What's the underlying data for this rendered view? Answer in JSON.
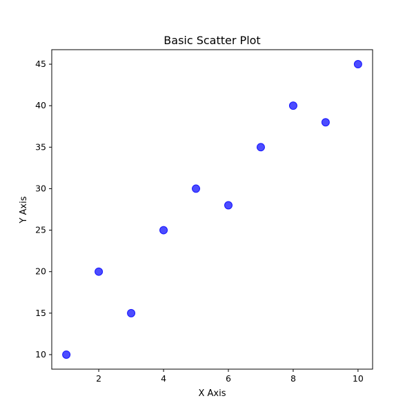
{
  "chart_data": {
    "type": "scatter",
    "title": "Basic Scatter Plot",
    "xlabel": "X Axis",
    "ylabel": "Y Axis",
    "x": [
      1,
      2,
      3,
      4,
      5,
      6,
      7,
      8,
      9,
      10
    ],
    "y": [
      10,
      20,
      15,
      25,
      30,
      28,
      35,
      40,
      38,
      45
    ],
    "xlim": [
      0.55,
      10.45
    ],
    "ylim": [
      8.25,
      46.75
    ],
    "xticks": [
      2,
      4,
      6,
      8,
      10
    ],
    "yticks": [
      10,
      15,
      20,
      25,
      30,
      35,
      40,
      45
    ],
    "xtick_labels": [
      "2",
      "4",
      "6",
      "8",
      "10"
    ],
    "ytick_labels": [
      "10",
      "15",
      "20",
      "25",
      "30",
      "35",
      "40",
      "45"
    ],
    "grid": false,
    "marker_color": "#0000ff",
    "marker_opacity": 0.7
  }
}
